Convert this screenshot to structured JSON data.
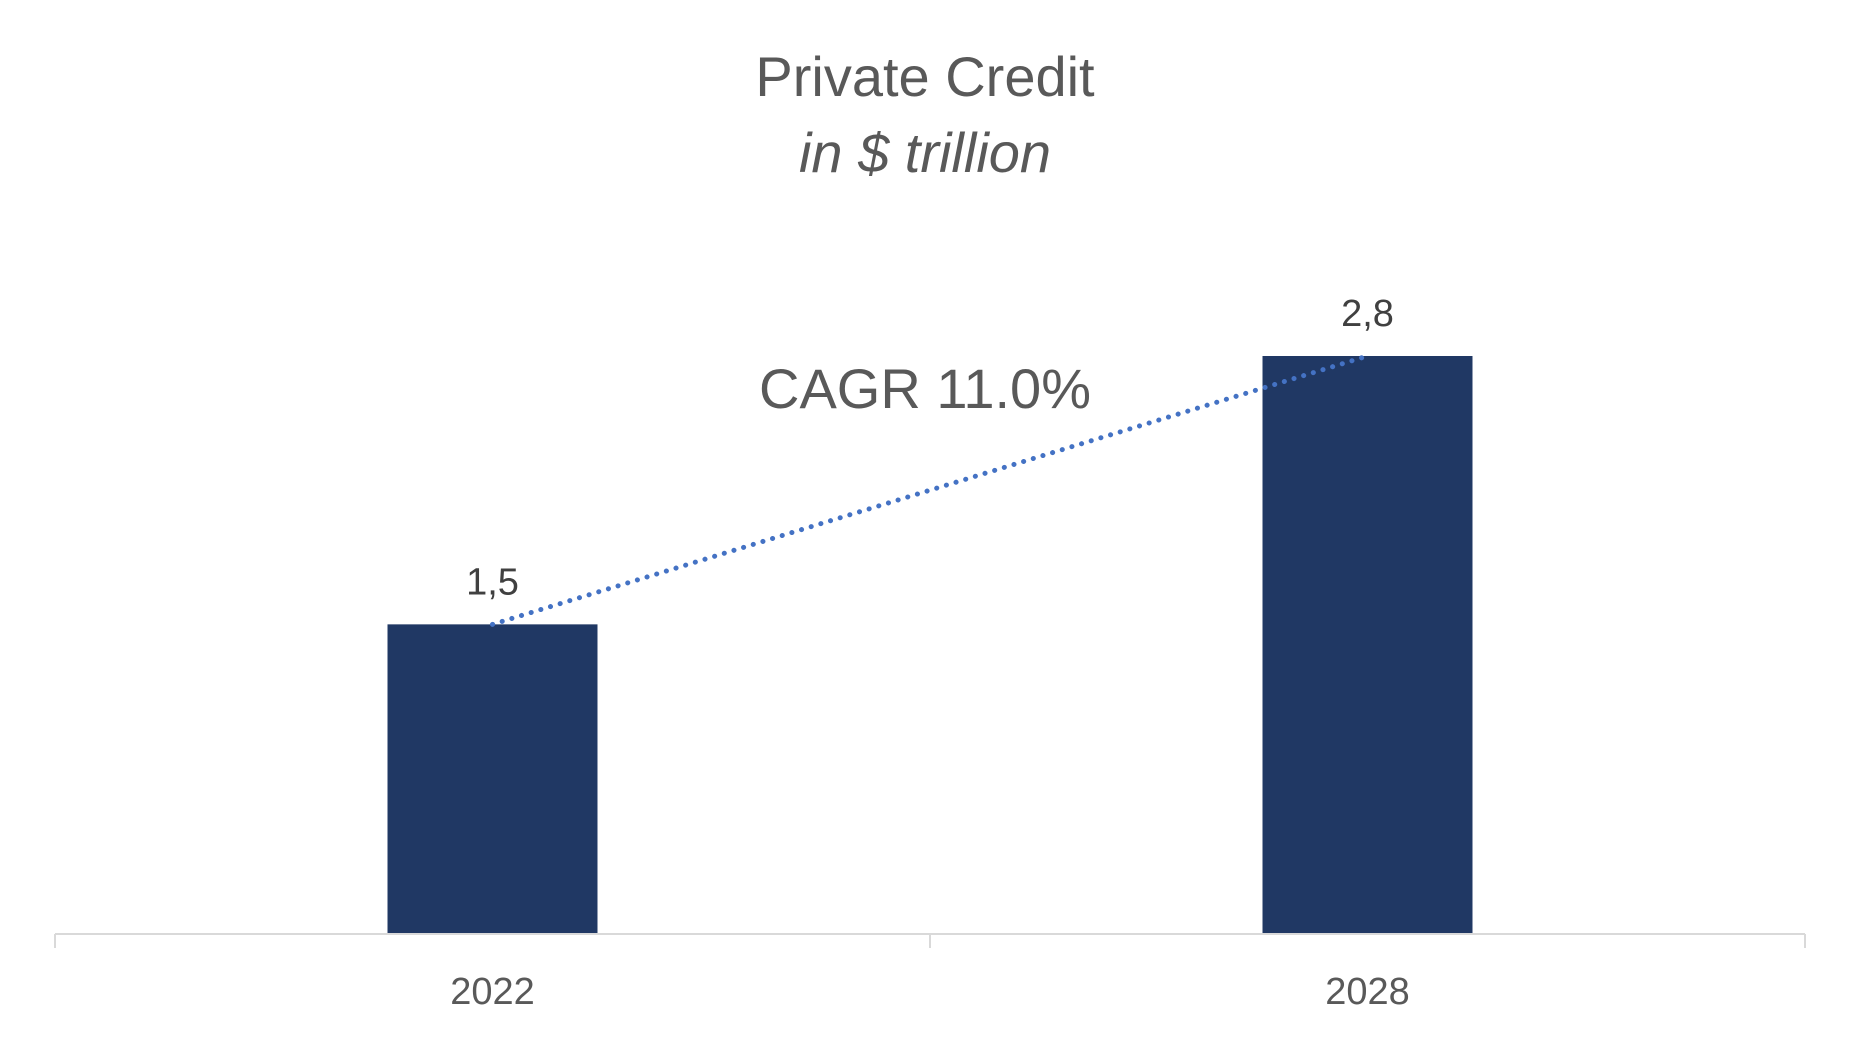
{
  "chart_data": {
    "type": "bar",
    "title": "Private Credit",
    "subtitle": "in $ trillion",
    "categories": [
      "2022",
      "2028"
    ],
    "values": [
      1.5,
      2.8
    ],
    "value_labels": [
      "1,5",
      "2,8"
    ],
    "annotation": "CAGR 11.0%",
    "xlabel": "",
    "ylabel": "",
    "ylim": [
      0,
      3.0
    ],
    "grid": false,
    "legend": "none"
  },
  "colors": {
    "bar": "#203864",
    "trend_line": "#4472C4",
    "title_text": "#595959",
    "label_text": "#404040",
    "axis_line": "#D9D9D9"
  }
}
